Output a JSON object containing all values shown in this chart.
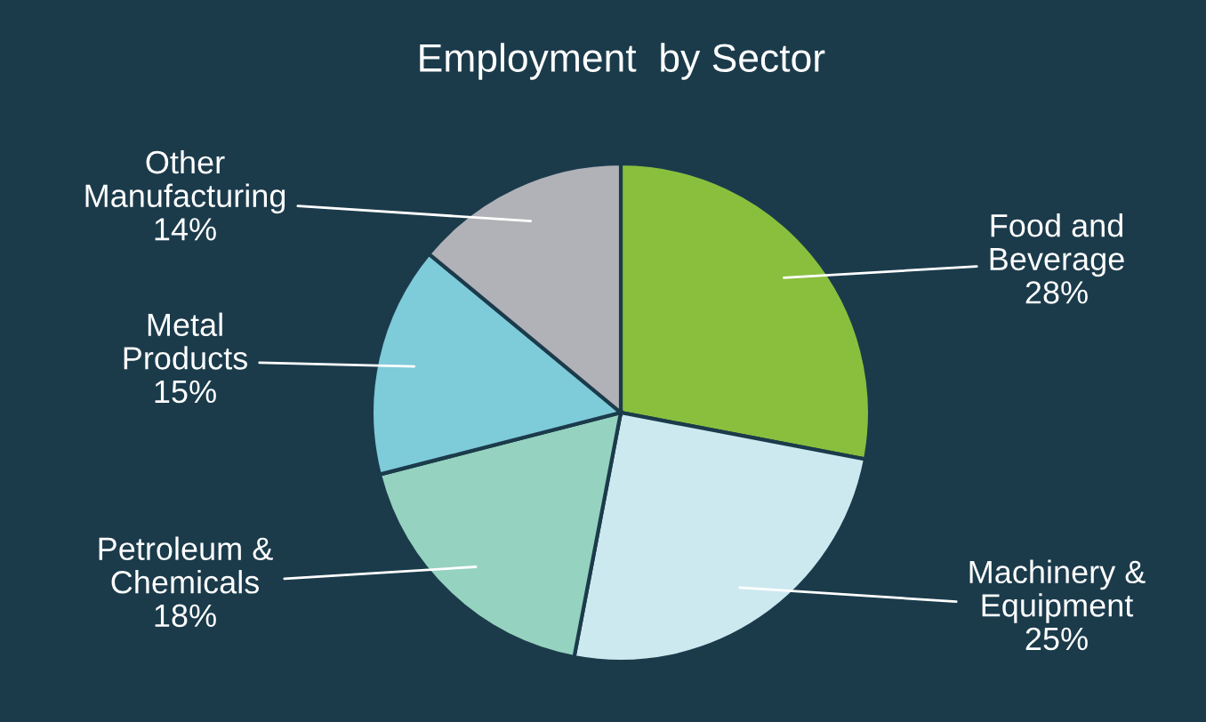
{
  "chart_data": {
    "type": "pie",
    "title": "Employment  by Sector",
    "categories": [
      "Food and Beverage",
      "Machinery & Equipment",
      "Petroleum & Chemicals",
      "Metal Products",
      "Other Manufacturing"
    ],
    "values": [
      28,
      25,
      18,
      15,
      14
    ],
    "value_labels": [
      "28%",
      "25%",
      "18%",
      "15%",
      "14%"
    ],
    "colors": [
      "#8abf3e",
      "#cde9f0",
      "#95d2bf",
      "#7ecbd9",
      "#b1b1b8"
    ],
    "legend": false
  }
}
